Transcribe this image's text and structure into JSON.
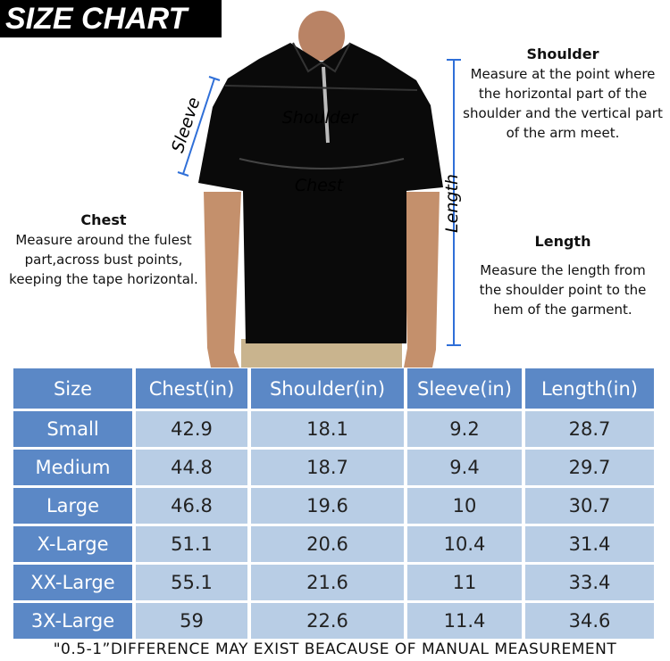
{
  "header": {
    "title": "SIZE CHART"
  },
  "figure": {
    "sleeve_label": "Sleeve",
    "shoulder_label": "Shoulder",
    "chest_label": "Chest",
    "length_label": "Length"
  },
  "notes": {
    "shoulder": {
      "title": "Shoulder",
      "lines": [
        "Measure at the point where",
        "the horizontal part of the",
        "shoulder and the vertical part",
        "of the arm meet."
      ]
    },
    "chest": {
      "title": "Chest",
      "lines": [
        "Measure around the fulest",
        "part,across bust points,",
        "keeping the tape horizontal."
      ]
    },
    "length": {
      "title": "Length",
      "lines": [
        "Measure the length from",
        "the shoulder point to the",
        "hem of the garment."
      ]
    }
  },
  "table": {
    "columns": [
      "Size",
      "Chest(in)",
      "Shoulder(in)",
      "Sleeve(in)",
      "Length(in)"
    ],
    "rows": [
      [
        "Small",
        42.9,
        18.1,
        9.2,
        28.7
      ],
      [
        "Medium",
        44.8,
        18.7,
        9.4,
        29.7
      ],
      [
        "Large",
        46.8,
        19.6,
        10,
        30.7
      ],
      [
        "X-Large",
        51.1,
        20.6,
        10.4,
        31.4
      ],
      [
        "XX-Large",
        55.1,
        21.6,
        11,
        33.4
      ],
      [
        "3X-Large",
        59,
        22.6,
        11.4,
        34.6
      ]
    ]
  },
  "footer": {
    "note": "\"0.5-1”DIFFERENCE MAY EXIST BEACAUSE OF MANUAL MEASUREMENT"
  }
}
